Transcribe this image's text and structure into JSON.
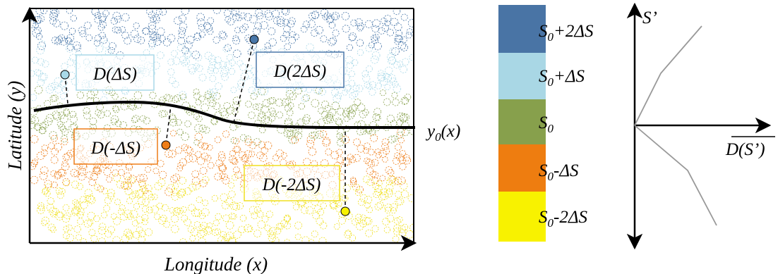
{
  "map": {
    "x_axis_label": "Longitude (x)",
    "y_axis_label": "Latitude (y)",
    "curve_label": "y0(x)",
    "boxes": [
      {
        "id": "d-plus-1",
        "text": "D(ΔS)",
        "color": "#a9d9e8"
      },
      {
        "id": "d-plus-2",
        "text": "D(2ΔS)",
        "color": "#4876a8"
      },
      {
        "id": "d-minus-1",
        "text": "D(-ΔS)",
        "color": "#ee7d18"
      },
      {
        "id": "d-minus-2",
        "text": "D(-2ΔS)",
        "color": "#f0e020"
      }
    ]
  },
  "legend": {
    "items": [
      {
        "label": "S0+2ΔS",
        "color": "#4974a5"
      },
      {
        "label": "S0+ΔS",
        "color": "#a9d7e5"
      },
      {
        "label": "S0",
        "color": "#87a04c"
      },
      {
        "label": "S0-ΔS",
        "color": "#ee7d10"
      },
      {
        "label": "S0-2ΔS",
        "color": "#f8f200"
      }
    ]
  },
  "profile": {
    "y_label": "S’",
    "x_label": "D(S’)"
  }
}
